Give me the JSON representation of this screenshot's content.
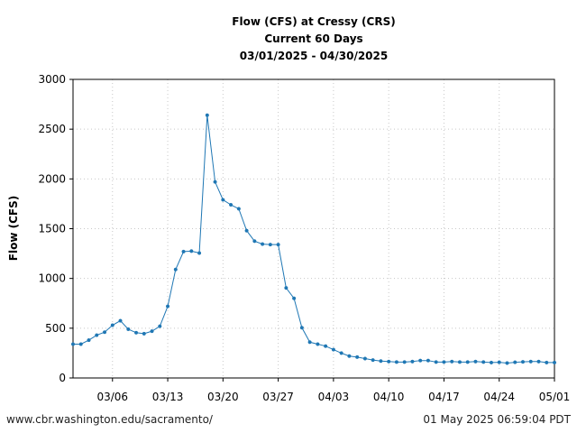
{
  "chart_data": {
    "type": "line",
    "title_lines": [
      "Flow (CFS) at Cressy (CRS)",
      "Current 60 Days",
      "03/01/2025 - 04/30/2025"
    ],
    "xlabel": "",
    "ylabel": "Flow (CFS)",
    "x_start": "03/01/2025",
    "xlim": [
      "03/01/2025",
      "05/01/2025"
    ],
    "ylim": [
      0,
      3000
    ],
    "x_ticks": [
      "03/06",
      "03/13",
      "03/20",
      "03/27",
      "04/03",
      "04/10",
      "04/17",
      "04/24",
      "05/01"
    ],
    "y_ticks": [
      0,
      500,
      1000,
      1500,
      2000,
      2500,
      3000
    ],
    "grid": true,
    "series": [
      {
        "color": "#1f77b4",
        "values": [
          340,
          340,
          380,
          430,
          460,
          530,
          575,
          490,
          455,
          445,
          470,
          520,
          720,
          1090,
          1270,
          1275,
          1255,
          2640,
          1970,
          1790,
          1740,
          1700,
          1480,
          1375,
          1345,
          1340,
          1340,
          905,
          800,
          505,
          360,
          340,
          320,
          285,
          250,
          220,
          210,
          195,
          180,
          170,
          165,
          160,
          160,
          165,
          175,
          175,
          160,
          160,
          165,
          160,
          160,
          165,
          160,
          155,
          158,
          150,
          158,
          162,
          165,
          165,
          155,
          155
        ]
      }
    ]
  },
  "footer": {
    "left": "www.cbr.washington.edu/sacramento/",
    "right": "01 May 2025 06:59:04 PDT"
  }
}
